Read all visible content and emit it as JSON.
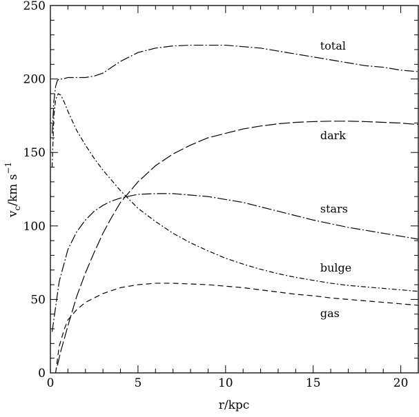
{
  "chart_data": {
    "type": "line",
    "xlabel": "r/kpc",
    "ylabel": {
      "base": "v",
      "sub": "c",
      "rest": "/km s",
      "sup": "−1"
    },
    "xlim": [
      0,
      21
    ],
    "ylim": [
      0,
      250
    ],
    "x_ticks": [
      0,
      5,
      10,
      15,
      20
    ],
    "y_ticks": [
      0,
      50,
      100,
      150,
      200,
      250
    ],
    "x_minor_step": 1,
    "y_minor_step": 10,
    "grid": false,
    "series": [
      {
        "name": "total",
        "dash": "dash-dot-long",
        "label_at": [
          15.4,
          220
        ],
        "points": [
          [
            0.1,
            163
          ],
          [
            0.2,
            185
          ],
          [
            0.3,
            195
          ],
          [
            0.4,
            199
          ],
          [
            0.5,
            200
          ],
          [
            0.7,
            200
          ],
          [
            1,
            201
          ],
          [
            1.5,
            201
          ],
          [
            2,
            201
          ],
          [
            2.5,
            202
          ],
          [
            3,
            204
          ],
          [
            3.5,
            208
          ],
          [
            4,
            212
          ],
          [
            5,
            218
          ],
          [
            6,
            221
          ],
          [
            7,
            222.5
          ],
          [
            8,
            223
          ],
          [
            9,
            223
          ],
          [
            10,
            223
          ],
          [
            11,
            222
          ],
          [
            12,
            221
          ],
          [
            13,
            219
          ],
          [
            14,
            217
          ],
          [
            15,
            215
          ],
          [
            16,
            213
          ],
          [
            17,
            211
          ],
          [
            18,
            209
          ],
          [
            19,
            208
          ],
          [
            20,
            206
          ],
          [
            21,
            205
          ]
        ]
      },
      {
        "name": "dark",
        "dash": "dash-long",
        "label_at": [
          15.4,
          159
        ],
        "points": [
          [
            0.4,
            5
          ],
          [
            0.6,
            15
          ],
          [
            1,
            32
          ],
          [
            1.5,
            52
          ],
          [
            2,
            68
          ],
          [
            2.5,
            82
          ],
          [
            3,
            95
          ],
          [
            3.5,
            106
          ],
          [
            4,
            116
          ],
          [
            5,
            130
          ],
          [
            6,
            141
          ],
          [
            7,
            149
          ],
          [
            8,
            155
          ],
          [
            9,
            160
          ],
          [
            10,
            163
          ],
          [
            11,
            166
          ],
          [
            12,
            168
          ],
          [
            13,
            169.5
          ],
          [
            14,
            170.5
          ],
          [
            15,
            171
          ],
          [
            16,
            171.3
          ],
          [
            17,
            171.3
          ],
          [
            18,
            171
          ],
          [
            19,
            170.5
          ],
          [
            20,
            170
          ],
          [
            21,
            169
          ]
        ]
      },
      {
        "name": "stars",
        "dash": "dash-dot-long",
        "label_at": [
          15.4,
          109
        ],
        "points": [
          [
            0.1,
            28
          ],
          [
            0.3,
            45
          ],
          [
            0.5,
            62
          ],
          [
            1,
            84
          ],
          [
            1.5,
            96
          ],
          [
            2,
            104
          ],
          [
            2.5,
            110
          ],
          [
            3,
            114
          ],
          [
            3.5,
            117
          ],
          [
            4,
            119
          ],
          [
            5,
            121.5
          ],
          [
            6,
            122
          ],
          [
            7,
            122
          ],
          [
            8,
            121
          ],
          [
            9,
            120
          ],
          [
            10,
            118
          ],
          [
            11,
            116
          ],
          [
            12,
            113
          ],
          [
            13,
            110
          ],
          [
            14,
            107
          ],
          [
            15,
            104
          ],
          [
            16,
            101.5
          ],
          [
            17,
            99
          ],
          [
            18,
            97
          ],
          [
            19,
            95
          ],
          [
            20,
            93
          ],
          [
            21,
            91
          ]
        ]
      },
      {
        "name": "bulge",
        "dash": "dash-dot-short",
        "label_at": [
          15.4,
          69
        ],
        "points": [
          [
            0.1,
            140
          ],
          [
            0.2,
            175
          ],
          [
            0.3,
            186
          ],
          [
            0.45,
            190
          ],
          [
            0.6,
            189
          ],
          [
            0.8,
            184
          ],
          [
            1,
            178
          ],
          [
            1.5,
            165
          ],
          [
            2,
            155
          ],
          [
            2.5,
            146
          ],
          [
            3,
            138
          ],
          [
            3.5,
            131
          ],
          [
            4,
            124
          ],
          [
            5,
            112
          ],
          [
            6,
            103
          ],
          [
            7,
            95
          ],
          [
            8,
            88.5
          ],
          [
            9,
            83
          ],
          [
            10,
            78
          ],
          [
            11,
            74
          ],
          [
            12,
            70.5
          ],
          [
            13,
            67.5
          ],
          [
            14,
            65
          ],
          [
            15,
            63
          ],
          [
            16,
            61
          ],
          [
            17,
            59.5
          ],
          [
            18,
            58.5
          ],
          [
            19,
            57.5
          ],
          [
            20,
            56.5
          ],
          [
            21,
            55.5
          ]
        ]
      },
      {
        "name": "gas",
        "dash": "dash-short",
        "label_at": [
          15.4,
          38
        ],
        "points": [
          [
            0.3,
            0
          ],
          [
            0.5,
            18
          ],
          [
            0.8,
            30
          ],
          [
            1,
            36
          ],
          [
            1.5,
            43
          ],
          [
            2,
            48
          ],
          [
            2.5,
            51
          ],
          [
            3,
            54
          ],
          [
            3.5,
            56
          ],
          [
            4,
            58
          ],
          [
            5,
            60
          ],
          [
            6,
            61
          ],
          [
            7,
            61
          ],
          [
            8,
            60.5
          ],
          [
            9,
            60
          ],
          [
            10,
            59
          ],
          [
            11,
            58
          ],
          [
            12,
            56.5
          ],
          [
            13,
            55
          ],
          [
            14,
            53.5
          ],
          [
            15,
            52.5
          ],
          [
            16,
            51
          ],
          [
            17,
            50
          ],
          [
            18,
            49
          ],
          [
            19,
            48
          ],
          [
            20,
            47
          ],
          [
            21,
            46
          ]
        ]
      }
    ]
  }
}
